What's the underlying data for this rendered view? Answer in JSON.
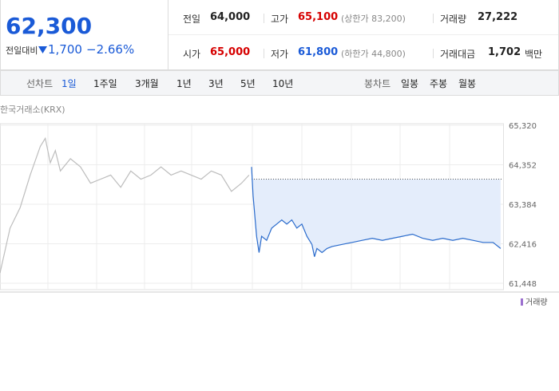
{
  "header": {
    "price": "62,300",
    "change_label": "전일대비",
    "change": "1,700",
    "change_rate": "−2.66%"
  },
  "stats": [
    {
      "label": "전일",
      "value": "64,000"
    },
    {
      "label": "고가",
      "value": "65,100",
      "note": "(상한가 83,200)"
    },
    {
      "label": "거래량",
      "value": "27,222"
    },
    {
      "label": "시가",
      "value": "65,000"
    },
    {
      "label": "저가",
      "value": "61,800",
      "note": "(하한가 44,800)"
    },
    {
      "label": "거래대금",
      "value": "1,702",
      "unit": "백만"
    }
  ],
  "tabs": {
    "line_label": "선차트",
    "line": [
      "1일",
      "1주일",
      "3개월",
      "1년",
      "3년",
      "5년",
      "10년"
    ],
    "candle_label": "봉차트",
    "candle": [
      "일봉",
      "주봉",
      "월봉"
    ]
  },
  "chart_data": {
    "type": "line",
    "source": "한국거래소(KRX)",
    "legend": "거래량",
    "xlim": [
      0,
      100
    ],
    "ylim": [
      61448,
      65320
    ],
    "yticks": [
      {
        "value": 61448,
        "label": "61,448"
      },
      {
        "value": 62416,
        "label": "62,416"
      },
      {
        "value": 63384,
        "label": "63,384"
      },
      {
        "value": 64352,
        "label": "64,352"
      },
      {
        "value": 65320,
        "label": "65,320"
      }
    ],
    "baseline": 64000,
    "series": [
      {
        "color": "#bdbdbd",
        "x": [
          0,
          2,
          4,
          6,
          8,
          9,
          10,
          11,
          12,
          14,
          16,
          18,
          20,
          22,
          24,
          26,
          28,
          30,
          32,
          34,
          36,
          38,
          40,
          42,
          44,
          46,
          48,
          49.5
        ],
        "values": [
          61700,
          62800,
          63300,
          64100,
          64800,
          65000,
          64400,
          64700,
          64200,
          64500,
          64300,
          63900,
          64000,
          64100,
          63800,
          64200,
          64000,
          64100,
          64300,
          64100,
          64200,
          64100,
          64000,
          64200,
          64100,
          63700,
          63900,
          64100
        ]
      },
      {
        "color": "#2a6bcc",
        "x": [
          50,
          50.3,
          51,
          51.5,
          52,
          53,
          54,
          55,
          56,
          57,
          58,
          59,
          60,
          61,
          62,
          62.5,
          63,
          64,
          65,
          66,
          68,
          70,
          72,
          74,
          76,
          78,
          80,
          82,
          84,
          86,
          88,
          90,
          92,
          94,
          96,
          98,
          99.5
        ],
        "values": [
          64300,
          63600,
          62600,
          62200,
          62600,
          62500,
          62800,
          62900,
          63000,
          62900,
          63000,
          62800,
          62900,
          62600,
          62400,
          62100,
          62300,
          62200,
          62300,
          62350,
          62400,
          62450,
          62500,
          62550,
          62500,
          62550,
          62600,
          62650,
          62550,
          62500,
          62550,
          62500,
          62550,
          62500,
          62450,
          62450,
          62300
        ]
      }
    ]
  }
}
